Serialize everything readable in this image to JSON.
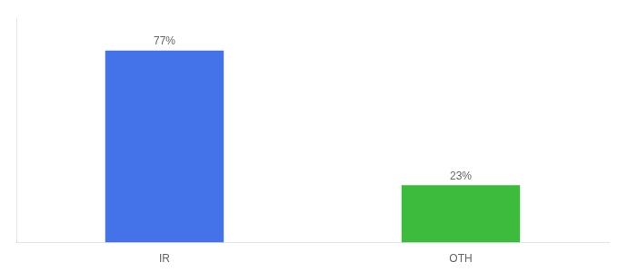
{
  "chart_data": {
    "type": "bar",
    "categories": [
      "IR",
      "OTH"
    ],
    "values": [
      77,
      23
    ],
    "value_labels": [
      "77%",
      "23%"
    ],
    "colors": [
      "#4472e8",
      "#3dbb3d"
    ],
    "ylim": [
      0,
      90
    ],
    "data_labels": true,
    "tick_labels": "x",
    "grid": false
  }
}
